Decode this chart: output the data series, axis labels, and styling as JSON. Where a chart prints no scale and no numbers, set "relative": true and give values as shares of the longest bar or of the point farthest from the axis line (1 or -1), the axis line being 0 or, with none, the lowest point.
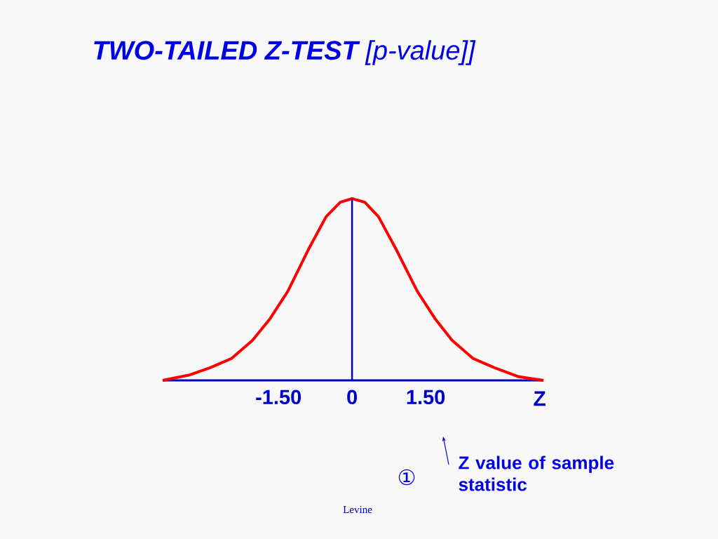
{
  "chart_data": {
    "type": "line",
    "title": "**TWO-TAILED Z-TEST** [p-value]]",
    "xlabel": "Z",
    "relative": true,
    "x": [
      -3.86,
      -3.31,
      -2.89,
      -2.46,
      -2.03,
      -1.67,
      -1.31,
      -0.89,
      -0.53,
      -0.24,
      0,
      0.26,
      0.54,
      0.9,
      1.33,
      1.69,
      2.04,
      2.47,
      2.9,
      3.4,
      3.9
    ],
    "series": [
      {
        "color": "#ff0000",
        "values": [
          0,
          0.03,
          0.07,
          0.12,
          0.22,
          0.34,
          0.49,
          0.72,
          0.9,
          0.98,
          1,
          0.98,
          0.9,
          0.72,
          0.49,
          0.34,
          0.22,
          0.12,
          0.07,
          0.02,
          0
        ]
      }
    ],
    "xlim": [
      -3.86,
      3.9
    ],
    "xticks": [
      {
        "value": -1.5,
        "label": "-1.50"
      },
      0,
      {
        "value": 1.5,
        "label": "1.50"
      }
    ],
    "ref_lines": [
      {
        "axis": "x",
        "value": 0,
        "color": "#0000c0"
      }
    ],
    "grid": false,
    "marker": "none",
    "line_style": "solid",
    "annotations": [
      "Z value of sample statistic",
      "①",
      "Levine"
    ]
  }
}
